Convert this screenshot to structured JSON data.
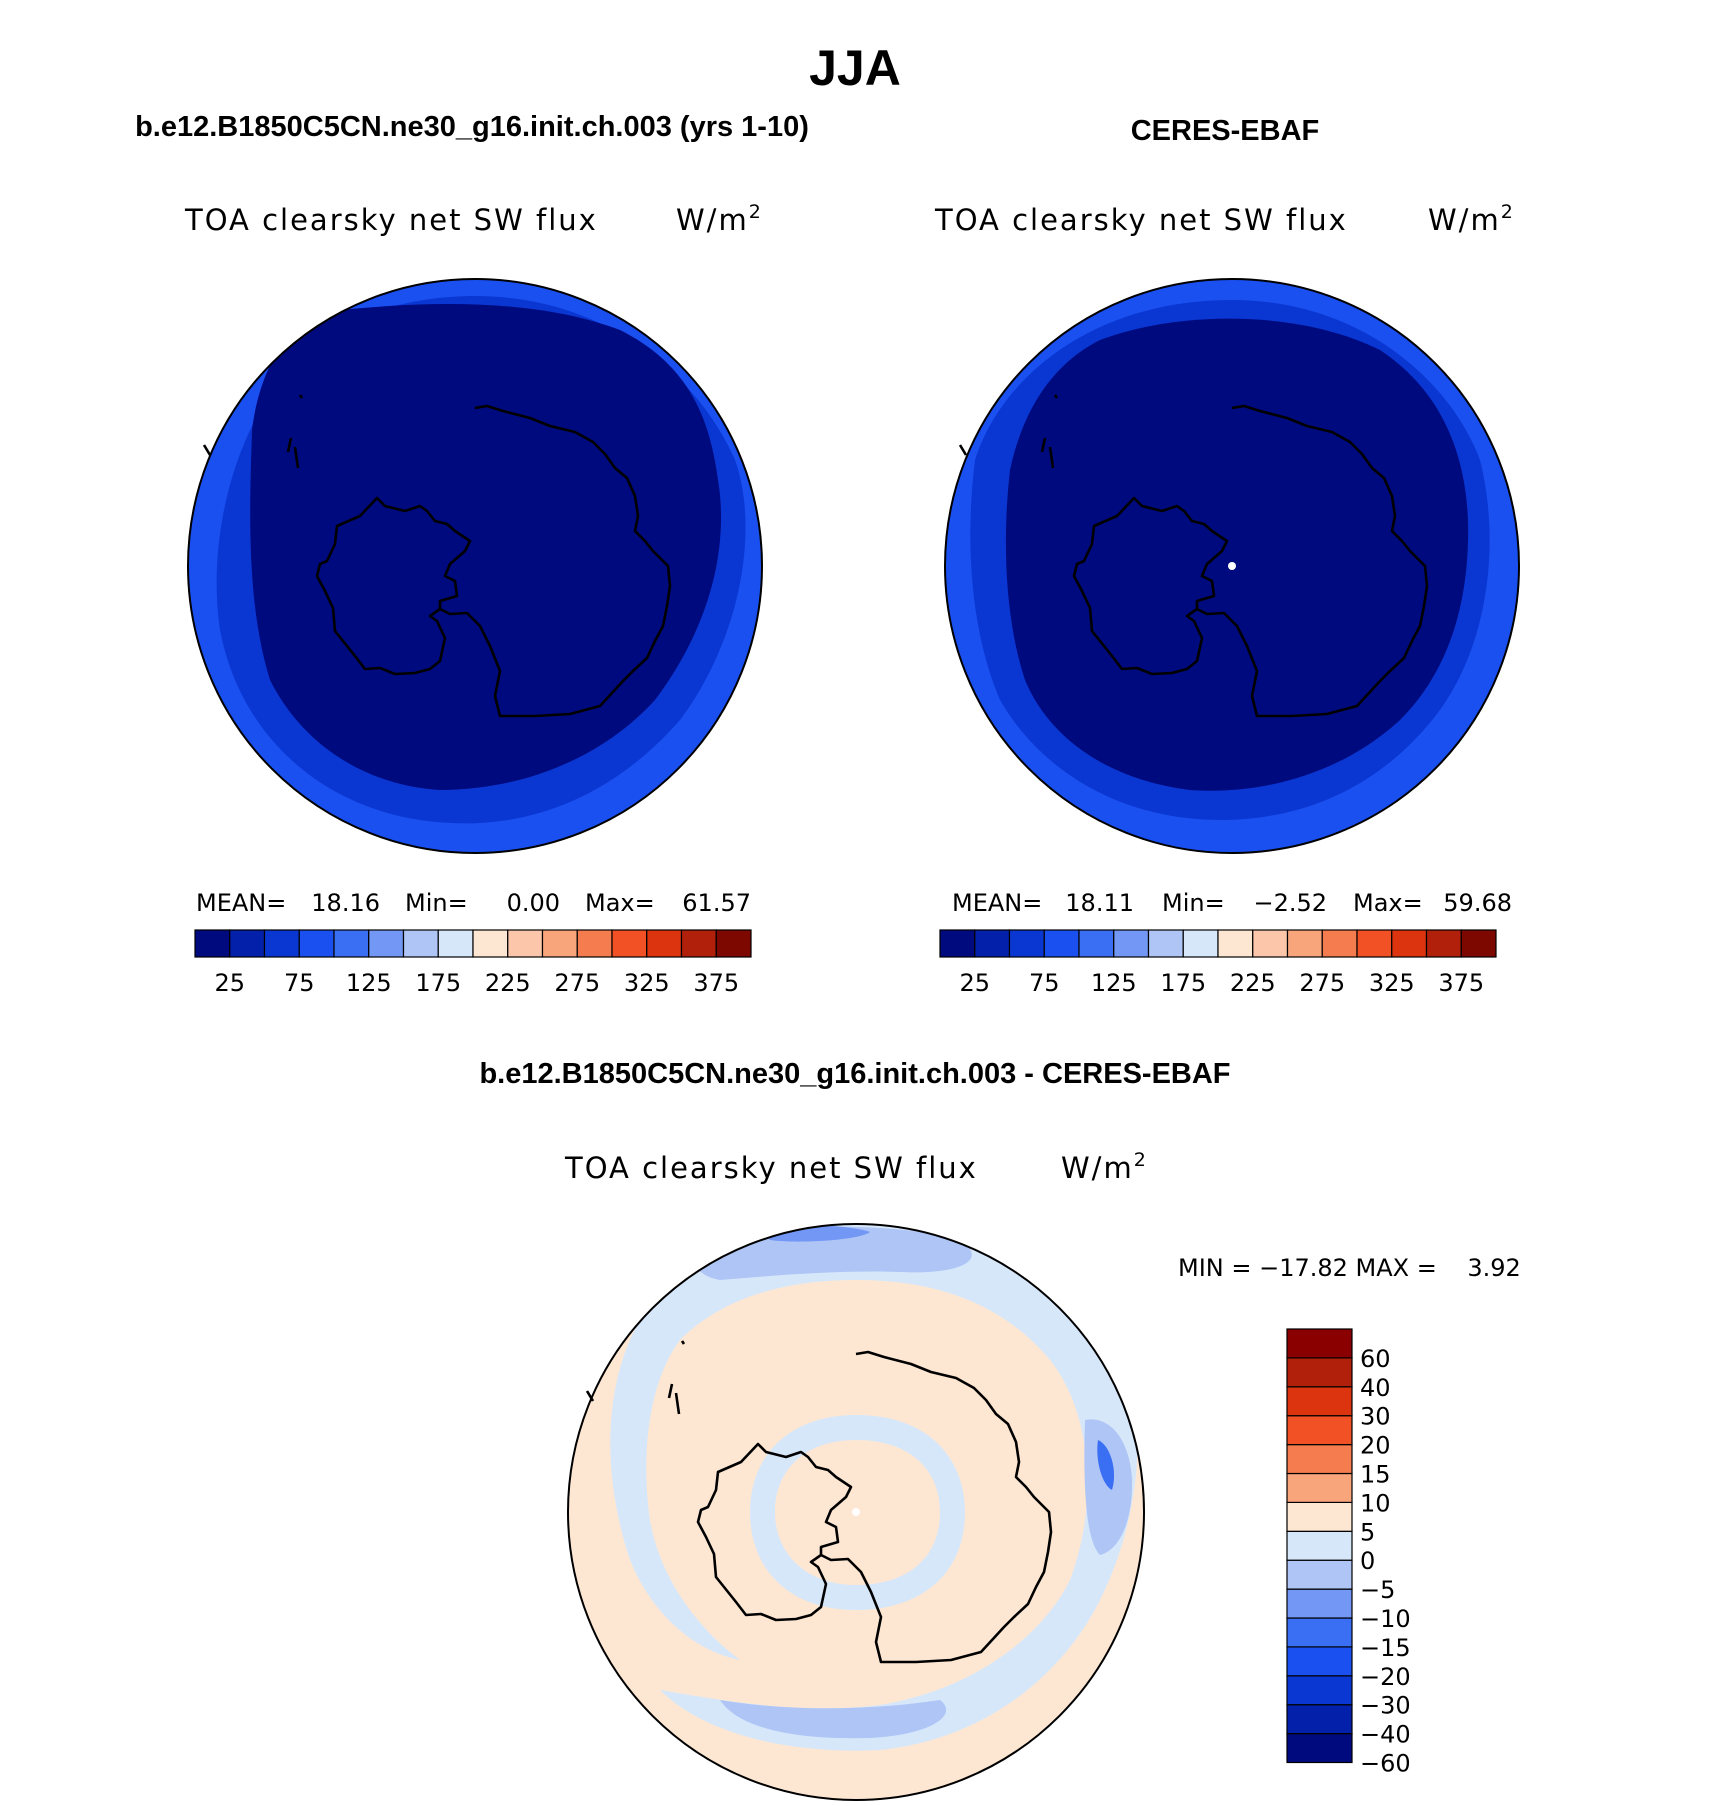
{
  "season": "JJA",
  "panels": {
    "model": {
      "title": "b.e12.B1850C5CN.ne30_g16.init.ch.003 (yrs 1-10)",
      "variable": "TOA clearsky net SW flux",
      "units": "W/m",
      "units_exp": "2",
      "stats": {
        "mean_label": "MEAN=",
        "mean": "18.16",
        "min_label": "Min=",
        "min": "0.00",
        "max_label": "Max=",
        "max": "61.57"
      }
    },
    "obs": {
      "title": "CERES-EBAF",
      "variable": "TOA clearsky net SW flux",
      "units": "W/m",
      "units_exp": "2",
      "stats": {
        "mean_label": "MEAN=",
        "mean": "18.11",
        "min_label": "Min=",
        "min": "−2.52",
        "max_label": "Max=",
        "max": "59.68"
      }
    },
    "diff": {
      "title": "b.e12.B1850C5CN.ne30_g16.init.ch.003 - CERES-EBAF",
      "variable": "TOA clearsky net SW flux",
      "units": "W/m",
      "units_exp": "2",
      "minmax": "MIN = −17.82 MAX =    3.92"
    }
  },
  "colorbar_abs": {
    "colors": [
      "#000a7f",
      "#0320aa",
      "#0a37d2",
      "#1b50f0",
      "#3b6ff3",
      "#7397f4",
      "#aec5f6",
      "#d7e7fa",
      "#fde7d3",
      "#fbc6aa",
      "#f8a57c",
      "#f57c4e",
      "#f15124",
      "#dd3410",
      "#b0200a",
      "#7d0800"
    ],
    "tick_labels": [
      "25",
      "75",
      "125",
      "175",
      "225",
      "275",
      "325",
      "375"
    ]
  },
  "colorbar_diff": {
    "colors": [
      "#000a7f",
      "#0320aa",
      "#0a37d2",
      "#1b50f0",
      "#3b6ff3",
      "#7397f4",
      "#aec5f6",
      "#d7e7fa",
      "#fde7d3",
      "#f8a57c",
      "#f57c4e",
      "#f15124",
      "#dd3410",
      "#b0200a",
      "#8a0000"
    ],
    "tick_labels": [
      "60",
      "40",
      "30",
      "20",
      "15",
      "10",
      "5",
      "0",
      "−5",
      "−10",
      "−15",
      "−20",
      "−30",
      "−40",
      "−60"
    ]
  },
  "map_colors": {
    "ring_outer": "#1b50f0",
    "ring_mid": "#0a37d2",
    "interior": "#000a7f",
    "diff_background": "#fde7d3",
    "diff_light_blue": "#d7e7fa",
    "diff_mid_blue": "#aec5f6",
    "diff_blue": "#7397f4",
    "diff_dark_blue": "#3b6ff3"
  }
}
